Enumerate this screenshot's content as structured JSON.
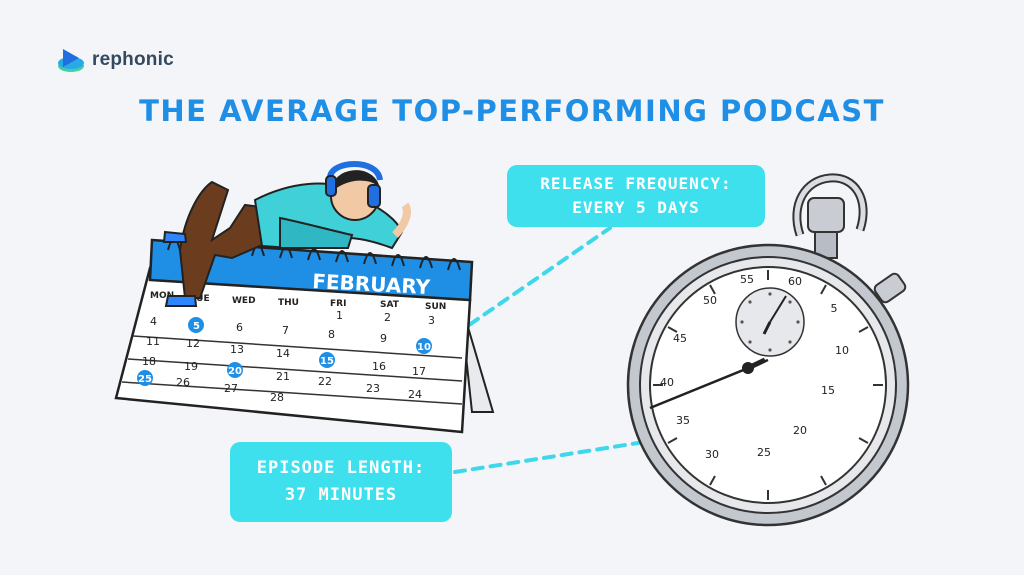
{
  "brand": {
    "name": "rephonic",
    "logo_icon": "rephonic-logo-icon"
  },
  "headline": "THE AVERAGE TOP-PERFORMING PODCAST",
  "release_callout": {
    "line1": "RELEASE FREQUENCY:",
    "line2": "EVERY 5 DAYS"
  },
  "episode_callout": {
    "line1": "EPISODE LENGTH:",
    "line2": "37 MINUTES"
  },
  "calendar": {
    "month": "FEBRUARY",
    "weekdays": [
      "MON",
      "TUE",
      "WED",
      "THU",
      "FRI",
      "SAT",
      "SUN"
    ],
    "highlighted_days": [
      "5",
      "10",
      "15",
      "20",
      "25"
    ],
    "highlight_color": "#1f8fe6"
  },
  "stopwatch": {
    "dial_labels": [
      "60",
      "5",
      "10",
      "15",
      "20",
      "25",
      "30",
      "35",
      "40",
      "45",
      "50",
      "55"
    ]
  },
  "colors": {
    "accent": "#1f8fe6",
    "callout": "#3fe0ee",
    "background": "#f3f5f9"
  }
}
